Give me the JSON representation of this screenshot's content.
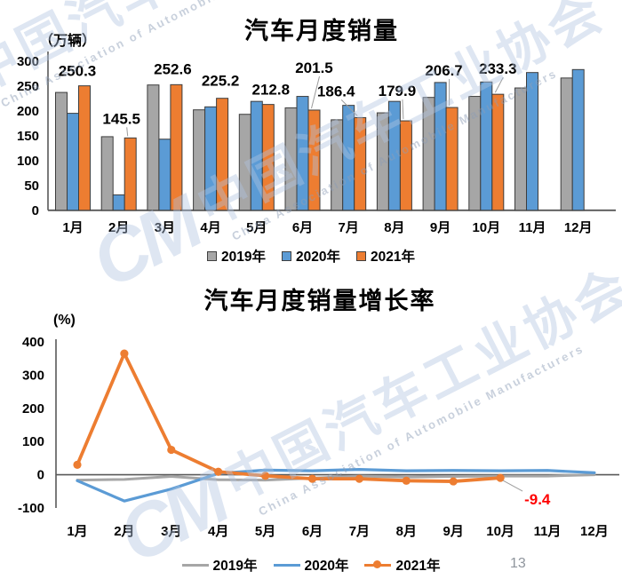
{
  "watermark": {
    "logo_text": "CM",
    "cn": "中国汽车工业协会",
    "en": "China Association of Automobile Manufacturers"
  },
  "page": {
    "number": "13"
  },
  "chart_data": [
    {
      "type": "bar",
      "title": "汽车月度销量",
      "unit_label": "（万辆）",
      "categories": [
        "1月",
        "2月",
        "3月",
        "4月",
        "5月",
        "6月",
        "7月",
        "8月",
        "9月",
        "10月",
        "11月",
        "12月"
      ],
      "series": [
        {
          "name": "2019年",
          "color": "#a6a6a6",
          "values": [
            237,
            148,
            252,
            202,
            193,
            206,
            182,
            196,
            227,
            229,
            246,
            266
          ]
        },
        {
          "name": "2020年",
          "color": "#5b9bd5",
          "values": [
            195,
            31,
            143,
            208,
            219,
            229,
            211,
            219,
            257,
            258,
            277,
            283
          ]
        },
        {
          "name": "2021年",
          "color": "#ed7d31",
          "data_labels": true,
          "values": [
            250.3,
            145.5,
            252.6,
            225.2,
            212.8,
            201.5,
            186.4,
            179.9,
            206.7,
            233.3,
            null,
            null
          ]
        }
      ],
      "ylim": [
        0,
        300
      ],
      "yticks": [
        0,
        50,
        100,
        150,
        200,
        250,
        300
      ],
      "grid": false,
      "legend_position": "bottom"
    },
    {
      "type": "line",
      "title": "汽车月度销量增长率",
      "unit_label": "(%)",
      "categories": [
        "1月",
        "2月",
        "3月",
        "4月",
        "5月",
        "6月",
        "7月",
        "8月",
        "9月",
        "10月",
        "11月",
        "12月"
      ],
      "series": [
        {
          "name": "2019年",
          "color": "#a6a6a6",
          "marker": false,
          "values": [
            -16,
            -14,
            -5,
            -15,
            -16,
            -10,
            -4,
            -7,
            -5,
            -4,
            -4,
            0
          ]
        },
        {
          "name": "2020年",
          "color": "#5b9bd5",
          "marker": false,
          "values": [
            -18,
            -79,
            -43,
            4,
            14,
            12,
            16,
            12,
            13,
            12,
            13,
            6
          ]
        },
        {
          "name": "2021年",
          "color": "#ed7d31",
          "marker": true,
          "values": [
            30,
            365,
            75,
            9,
            -3,
            -12,
            -12,
            -18,
            -20,
            -9.4,
            null,
            null
          ]
        }
      ],
      "ylim": [
        -100,
        400
      ],
      "yticks": [
        -100,
        0,
        100,
        200,
        300,
        400
      ],
      "grid": false,
      "legend_position": "bottom",
      "annotation": {
        "text": "-9.4",
        "color": "#ff0000",
        "series": "2021年",
        "category": "10月"
      }
    }
  ]
}
